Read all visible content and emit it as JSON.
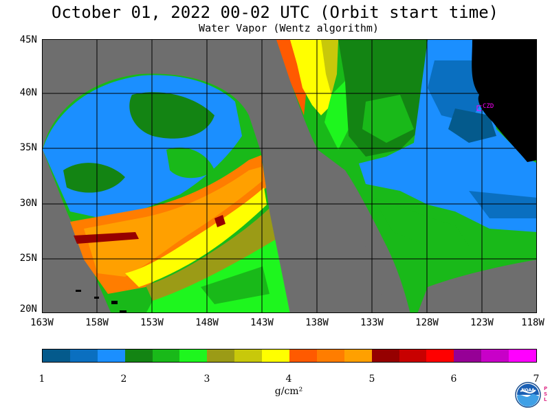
{
  "header": {
    "title": "October 01, 2022  00-02 UTC  (Orbit start time)",
    "subtitle": "Water Vapor (Wentz algorithm)"
  },
  "map": {
    "latitude_labels": [
      "45N",
      "40N",
      "35N",
      "30N",
      "25N",
      "20N"
    ],
    "longitude_labels": [
      "163W",
      "158W",
      "153W",
      "148W",
      "143W",
      "138W",
      "133W",
      "128W",
      "123W",
      "118W"
    ],
    "station_label": "CZD",
    "colors": {
      "no_data": "#6e6e6e",
      "land": "#000000",
      "station": "#ff00ff"
    }
  },
  "colorbar": {
    "tick_labels": [
      "1",
      "2",
      "3",
      "4",
      "5",
      "6",
      "7"
    ],
    "unit": "g/cm²",
    "colors": [
      "#045a8c",
      "#0a6fc0",
      "#1b8fff",
      "#138413",
      "#19b919",
      "#1ef61e",
      "#9b9b16",
      "#c8c80a",
      "#ffff00",
      "#ff5a00",
      "#ff7d00",
      "#ffa000",
      "#960000",
      "#c80000",
      "#ff0000",
      "#960096",
      "#c800c8",
      "#ff00ff"
    ]
  },
  "logo": {
    "text": "NOAA",
    "side_text": "PSL"
  }
}
